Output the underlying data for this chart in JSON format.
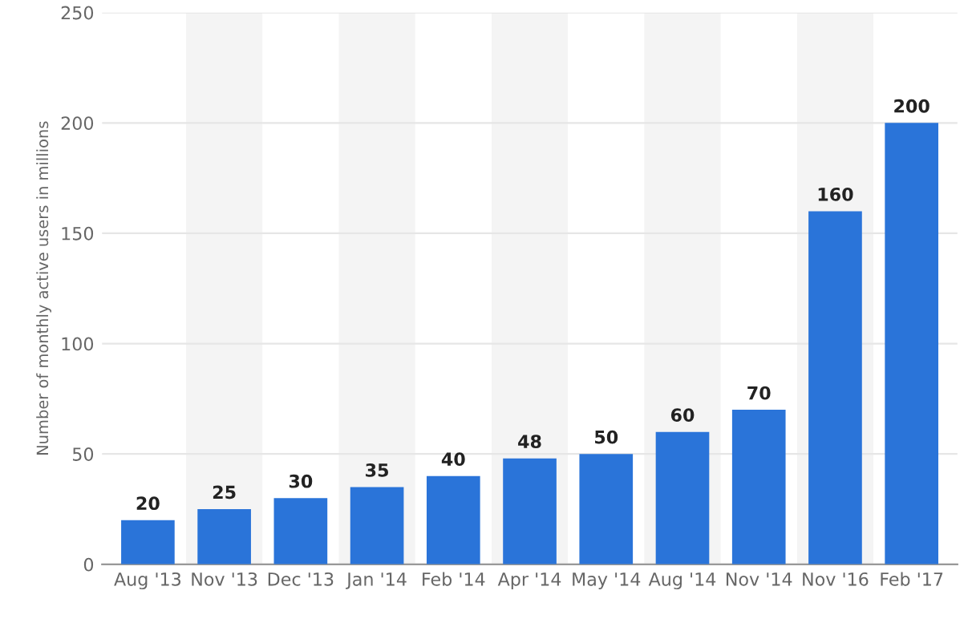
{
  "chart_data": {
    "type": "bar",
    "ylabel": "Number of monthly active users in millions",
    "categories": [
      "Aug '13",
      "Nov '13",
      "Dec '13",
      "Jan '14",
      "Feb '14",
      "Apr '14",
      "May '14",
      "Aug '14",
      "Nov '14",
      "Nov '16",
      "Feb '17"
    ],
    "values": [
      20,
      25,
      30,
      35,
      40,
      48,
      50,
      60,
      70,
      160,
      200
    ],
    "color": "#2a74d9",
    "ylim": [
      0,
      250
    ],
    "yticks": [
      0,
      50,
      100,
      150,
      200,
      250
    ],
    "grid": "y",
    "data_labels": true
  }
}
